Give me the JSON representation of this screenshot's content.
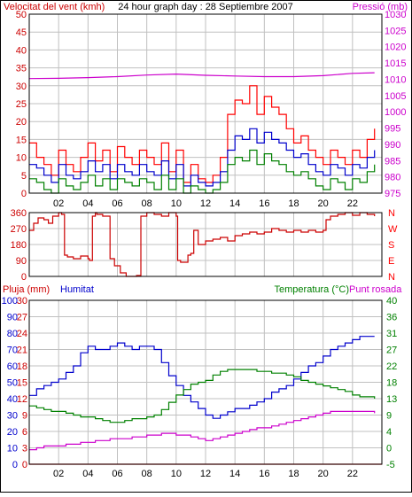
{
  "colors": {
    "red": "#ff0000",
    "darkred": "#cc0000",
    "blue": "#0000cc",
    "green": "#008000",
    "magenta": "#cc00cc",
    "grid": "#c0c0c0",
    "black": "#000000",
    "paper": "#ffffff"
  },
  "chart_data": [
    {
      "type": "line",
      "title": "24 hour graph day : 28 Septiembre 2007",
      "ylabel_left": "Velocitat del vent (kmh)",
      "ylabel_right": "Pressió (mb)",
      "x_ticks": [
        "02",
        "04",
        "06",
        "08",
        "10",
        "12",
        "14",
        "16",
        "18",
        "20",
        "22"
      ],
      "xlim": [
        0,
        24
      ],
      "ylim": [
        0,
        50
      ],
      "ylim_right": [
        975,
        1030
      ],
      "y_ticks": [
        "0",
        "5",
        "10",
        "15",
        "20",
        "25",
        "30",
        "35",
        "40",
        "45",
        "50"
      ],
      "y_ticks_right": [
        "975",
        "980",
        "985",
        "990",
        "995",
        "1000",
        "1005",
        "1010",
        "1015",
        "1020",
        "1025",
        "1030"
      ],
      "grid": true,
      "series": [
        {
          "axis": "right",
          "color_key": "magenta",
          "x": [
            0,
            2,
            4,
            6,
            8,
            10,
            12,
            14,
            16,
            18,
            20,
            22,
            23.5
          ],
          "values": [
            1010.2,
            1010.3,
            1010.5,
            1010.8,
            1011.3,
            1011.6,
            1011.2,
            1011.0,
            1010.8,
            1010.8,
            1011.1,
            1011.8,
            1012.0
          ]
        },
        {
          "axis": "left",
          "color_key": "red",
          "x": [
            0,
            0.5,
            1,
            1.5,
            2,
            2.5,
            3,
            3.5,
            4,
            4.5,
            5,
            5.5,
            6,
            6.5,
            7,
            7.5,
            8,
            8.5,
            9,
            9.5,
            10,
            10.5,
            11,
            11.5,
            12,
            12.5,
            13,
            13.5,
            14,
            14.5,
            15,
            15.5,
            16,
            16.5,
            17,
            17.5,
            18,
            18.5,
            19,
            19.5,
            20,
            20.5,
            21,
            21.5,
            22,
            22.5,
            23,
            23.5
          ],
          "values": [
            14,
            10,
            8,
            5,
            12,
            8,
            6,
            10,
            14,
            9,
            12,
            6,
            13,
            10,
            8,
            12,
            10,
            8,
            14,
            6,
            12,
            3,
            8,
            4,
            3,
            5,
            10,
            22,
            26,
            25,
            30,
            22,
            27,
            24,
            22,
            18,
            14,
            16,
            12,
            10,
            8,
            12,
            10,
            8,
            12,
            10,
            15,
            18
          ]
        },
        {
          "axis": "left",
          "color_key": "blue",
          "x": [
            0,
            0.5,
            1,
            1.5,
            2,
            2.5,
            3,
            3.5,
            4,
            4.5,
            5,
            5.5,
            6,
            6.5,
            7,
            7.5,
            8,
            8.5,
            9,
            9.5,
            10,
            10.5,
            11,
            11.5,
            12,
            12.5,
            13,
            13.5,
            14,
            14.5,
            15,
            15.5,
            16,
            16.5,
            17,
            17.5,
            18,
            18.5,
            19,
            19.5,
            20,
            20.5,
            21,
            21.5,
            22,
            22.5,
            23,
            23.5
          ],
          "values": [
            8,
            7,
            5,
            3,
            8,
            5,
            4,
            6,
            9,
            6,
            8,
            4,
            8,
            6,
            5,
            8,
            6,
            5,
            9,
            4,
            8,
            2,
            5,
            3,
            2,
            3,
            6,
            12,
            16,
            15,
            18,
            14,
            17,
            15,
            14,
            12,
            10,
            11,
            8,
            6,
            5,
            8,
            7,
            5,
            8,
            7,
            10,
            12
          ]
        },
        {
          "axis": "left",
          "color_key": "green",
          "x": [
            0,
            0.5,
            1,
            1.5,
            2,
            2.5,
            3,
            3.5,
            4,
            4.5,
            5,
            5.5,
            6,
            6.5,
            7,
            7.5,
            8,
            8.5,
            9,
            9.5,
            10,
            10.5,
            11,
            11.5,
            12,
            12.5,
            13,
            13.5,
            14,
            14.5,
            15,
            15.5,
            16,
            16.5,
            17,
            17.5,
            18,
            18.5,
            19,
            19.5,
            20,
            20.5,
            21,
            21.5,
            22,
            22.5,
            23,
            23.5
          ],
          "values": [
            4,
            3,
            1,
            0,
            4,
            2,
            1,
            3,
            5,
            2,
            4,
            1,
            4,
            3,
            2,
            4,
            3,
            1,
            5,
            1,
            4,
            0,
            2,
            1,
            0,
            1,
            3,
            8,
            10,
            9,
            12,
            8,
            11,
            9,
            8,
            6,
            5,
            6,
            4,
            2,
            1,
            4,
            3,
            1,
            4,
            3,
            6,
            8
          ]
        }
      ]
    },
    {
      "type": "line",
      "title": "",
      "ylabel_right": "N W S E N",
      "compass": [
        "N",
        "W",
        "S",
        "E",
        "N"
      ],
      "x_ticks": [],
      "xlim": [
        0,
        24
      ],
      "ylim": [
        0,
        360
      ],
      "y_ticks": [
        "0",
        "90",
        "180",
        "270",
        "360"
      ],
      "grid": true,
      "series": [
        {
          "color_key": "darkred",
          "x": [
            0,
            0.3,
            0.6,
            1,
            1.3,
            1.6,
            2,
            2.2,
            2.4,
            2.6,
            3,
            3.5,
            4,
            4.1,
            4.3,
            4.5,
            4.6,
            5,
            5.5,
            5.8,
            6.2,
            6.6,
            7,
            7.3,
            7.6,
            8,
            8.5,
            9,
            9.5,
            10,
            10.1,
            10.3,
            10.8,
            11,
            11.2,
            11.5,
            12,
            12.5,
            13,
            13.5,
            14,
            14.5,
            15,
            15.5,
            16,
            16.5,
            17,
            17.5,
            18,
            18.5,
            19,
            19.5,
            20,
            20.2,
            20.5,
            21,
            21.5,
            22,
            22.5,
            23,
            23.5
          ],
          "values": [
            260,
            300,
            330,
            320,
            300,
            340,
            360,
            350,
            120,
            110,
            100,
            115,
            100,
            90,
            340,
            360,
            350,
            340,
            100,
            60,
            20,
            0,
            0,
            5,
            340,
            360,
            350,
            340,
            360,
            340,
            90,
            80,
            120,
            130,
            260,
            180,
            200,
            210,
            220,
            200,
            230,
            240,
            250,
            240,
            250,
            270,
            260,
            250,
            260,
            250,
            260,
            250,
            260,
            320,
            340,
            350,
            360,
            345,
            360,
            350,
            340
          ]
        }
      ]
    },
    {
      "type": "line",
      "title": "",
      "ylabel_left": "Pluja (mm)",
      "ylabel_left2": "Humitat",
      "ylabel_right": "Temperatura (°C)",
      "ylabel_right2": "Punt rosada",
      "x_ticks": [
        "02",
        "04",
        "06",
        "08",
        "10",
        "12",
        "14",
        "16",
        "18",
        "20",
        "22"
      ],
      "xlim": [
        0,
        24
      ],
      "ylim_rain": [
        0,
        30
      ],
      "ylim_humidity": [
        0,
        100
      ],
      "ylim_temp": [
        -5,
        40
      ],
      "y_ticks_rain": [
        "0",
        "3",
        "6",
        "9",
        "12",
        "15",
        "18",
        "21",
        "24",
        "27",
        "30"
      ],
      "y_ticks_humidity": [
        "0",
        "10",
        "20",
        "30",
        "40",
        "50",
        "60",
        "70",
        "80",
        "90",
        "100"
      ],
      "y_ticks_temp": [
        "-5",
        "0",
        "4",
        "9",
        "13",
        "18",
        "22",
        "27",
        "31",
        "36",
        "40"
      ],
      "grid": true,
      "series": [
        {
          "name": "Humitat",
          "axis": "humidity",
          "color_key": "blue",
          "x": [
            0,
            0.5,
            1,
            1.5,
            2,
            2.5,
            3,
            3.5,
            4,
            4.5,
            5,
            5.5,
            6,
            6.5,
            7,
            7.5,
            8,
            8.5,
            9,
            9.5,
            10,
            10.5,
            11,
            11.5,
            12,
            12.5,
            13,
            13.5,
            14,
            14.5,
            15,
            15.5,
            16,
            16.5,
            17,
            17.5,
            18,
            18.5,
            19,
            19.5,
            20,
            20.5,
            21,
            21.5,
            22,
            22.5,
            23,
            23.5
          ],
          "values": [
            42,
            46,
            48,
            50,
            52,
            56,
            60,
            68,
            72,
            70,
            70,
            72,
            74,
            72,
            70,
            72,
            72,
            70,
            62,
            54,
            48,
            42,
            38,
            34,
            30,
            28,
            30,
            32,
            34,
            34,
            36,
            38,
            40,
            44,
            46,
            48,
            52,
            56,
            60,
            62,
            66,
            70,
            72,
            74,
            76,
            78,
            78,
            78
          ]
        },
        {
          "name": "Temperatura (°C)",
          "axis": "temp",
          "color_key": "green",
          "x": [
            0,
            0.5,
            1,
            1.5,
            2,
            2.5,
            3,
            3.5,
            4,
            4.5,
            5,
            5.5,
            6,
            6.5,
            7,
            7.5,
            8,
            8.5,
            9,
            9.5,
            10,
            10.5,
            11,
            11.5,
            12,
            12.5,
            13,
            13.5,
            14,
            14.5,
            15,
            15.5,
            16,
            16.5,
            17,
            17.5,
            18,
            18.5,
            19,
            19.5,
            20,
            20.5,
            21,
            21.5,
            22,
            22.5,
            23,
            23.5
          ],
          "values": [
            11,
            10.5,
            10,
            9.5,
            9.5,
            9,
            8.5,
            8,
            8,
            7.5,
            7,
            6.5,
            6.5,
            7,
            7.5,
            7.5,
            8,
            8.5,
            10,
            12,
            14,
            15.5,
            17,
            17.5,
            18,
            19.5,
            20.5,
            21,
            21,
            21,
            21,
            20.5,
            20.5,
            20,
            20,
            19.5,
            19,
            18,
            17.5,
            17,
            16.5,
            16,
            15.5,
            15,
            14,
            13.5,
            13.5,
            13
          ]
        },
        {
          "name": "Punt rosada",
          "axis": "temp",
          "color_key": "magenta",
          "x": [
            0,
            0.5,
            1,
            1.5,
            2,
            2.5,
            3,
            3.5,
            4,
            4.5,
            5,
            5.5,
            6,
            6.5,
            7,
            7.5,
            8,
            8.5,
            9,
            9.5,
            10,
            10.5,
            11,
            11.5,
            12,
            12.5,
            13,
            13.5,
            14,
            14.5,
            15,
            15.5,
            16,
            16.5,
            17,
            17.5,
            18,
            18.5,
            19,
            19.5,
            20,
            20.5,
            21,
            21.5,
            22,
            22.5,
            23,
            23.5
          ],
          "values": [
            -1,
            -0.5,
            0,
            0,
            0,
            0.5,
            0.5,
            1,
            1,
            1.5,
            1.5,
            2,
            2,
            2,
            2.5,
            2.5,
            3,
            3,
            3.5,
            3.5,
            3,
            3,
            2.5,
            2,
            1.5,
            2,
            2.5,
            3,
            3.5,
            4,
            4.5,
            5,
            5,
            5.5,
            6,
            6.5,
            7,
            7.5,
            8,
            8.5,
            9,
            9.5,
            9.5,
            9.5,
            9.5,
            9.5,
            9.5,
            9
          ]
        },
        {
          "name": "Pluja (mm)",
          "axis": "rain",
          "color_key": "red",
          "x": [
            0,
            24
          ],
          "values": [
            0,
            0
          ]
        }
      ]
    }
  ]
}
